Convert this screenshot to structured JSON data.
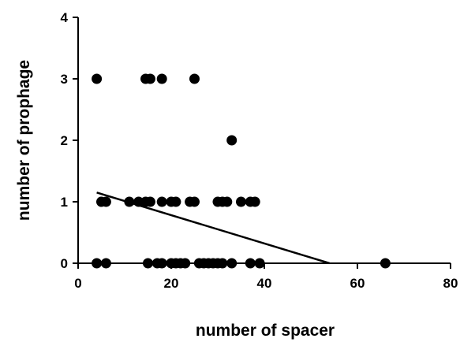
{
  "chart_data": {
    "type": "scatter",
    "title": "",
    "xlabel": "number of spacer",
    "ylabel": "number of prophage",
    "xlim": [
      0,
      80
    ],
    "ylim": [
      0,
      4
    ],
    "x_ticks": [
      0,
      20,
      40,
      60,
      80
    ],
    "y_ticks": [
      0,
      1,
      2,
      3,
      4
    ],
    "grid": false,
    "legend": "none",
    "series": [
      {
        "marker": "filled-circle",
        "color": "#000000",
        "points": [
          [
            4,
            3
          ],
          [
            14.5,
            3
          ],
          [
            15.5,
            3
          ],
          [
            18,
            3
          ],
          [
            25,
            3
          ],
          [
            33,
            2
          ],
          [
            5,
            1
          ],
          [
            6,
            1
          ],
          [
            11,
            1
          ],
          [
            13,
            1
          ],
          [
            14.5,
            1
          ],
          [
            15.5,
            1
          ],
          [
            18,
            1
          ],
          [
            20,
            1
          ],
          [
            21,
            1
          ],
          [
            24,
            1
          ],
          [
            25,
            1
          ],
          [
            30,
            1
          ],
          [
            31,
            1
          ],
          [
            32,
            1
          ],
          [
            35,
            1
          ],
          [
            37,
            1
          ],
          [
            38,
            1
          ],
          [
            4,
            0
          ],
          [
            6,
            0
          ],
          [
            15,
            0
          ],
          [
            17,
            0
          ],
          [
            18,
            0
          ],
          [
            20,
            0
          ],
          [
            21,
            0
          ],
          [
            22,
            0
          ],
          [
            23,
            0
          ],
          [
            26,
            0
          ],
          [
            27,
            0
          ],
          [
            28,
            0
          ],
          [
            29,
            0
          ],
          [
            30,
            0
          ],
          [
            31,
            0
          ],
          [
            33,
            0
          ],
          [
            37,
            0
          ],
          [
            39,
            0
          ],
          [
            66,
            0
          ]
        ]
      }
    ],
    "regression_line": {
      "color": "#000000",
      "x": [
        4,
        54
      ],
      "y": [
        1.15,
        0
      ]
    }
  }
}
